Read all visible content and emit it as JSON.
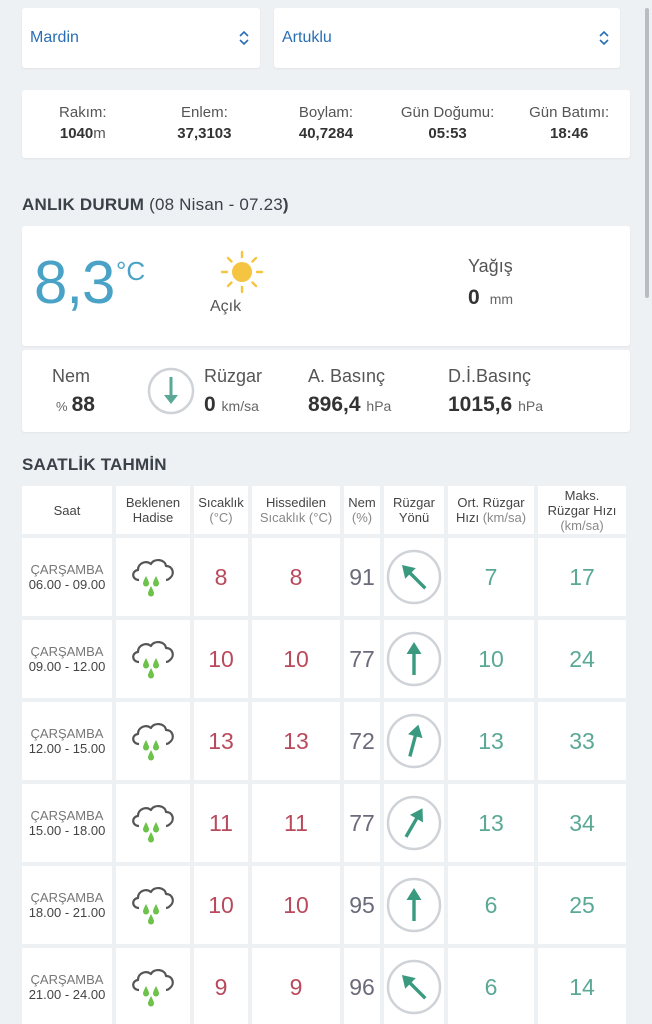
{
  "selectors": {
    "city": "Mardin",
    "district": "Artuklu"
  },
  "location_info": [
    {
      "label": "Rakım:",
      "value": "1040",
      "unit": "m"
    },
    {
      "label": "Enlem:",
      "value": "37,3103",
      "unit": ""
    },
    {
      "label": "Boylam:",
      "value": "40,7284",
      "unit": ""
    },
    {
      "label": "Gün Doğumu:",
      "value": "05:53",
      "unit": ""
    },
    {
      "label": "Gün Batımı:",
      "value": "18:46",
      "unit": ""
    }
  ],
  "current": {
    "title": "ANLIK DURUM",
    "date_open": "(",
    "date": "08 Nisan - 07.23",
    "date_close": ")",
    "temperature": "8,3",
    "temp_unit": "°C",
    "sky": "Açık",
    "sky_icon": "sun-icon",
    "precip_label": "Yağış",
    "precip_value": "0",
    "precip_unit": "mm",
    "humidity_label": "Nem",
    "humidity_prefix": "%",
    "humidity_value": "88",
    "wind_label": "Rüzgar",
    "wind_value": "0",
    "wind_unit": "km/sa",
    "pressure_label": "A. Basınç",
    "pressure_value": "896,4",
    "pressure_unit": "hPa",
    "sea_pressure_label": "D.İ.Basınç",
    "sea_pressure_value": "1015,6",
    "sea_pressure_unit": "hPa"
  },
  "hourly": {
    "title": "SAATLİK TAHMİN",
    "headers": {
      "hour": "Saat",
      "event_1": "Beklenen",
      "event_2": "Hadise",
      "temp_1": "Sıcaklık",
      "temp_2": "(°C)",
      "feels_1": "Hissedilen",
      "feels_2": "Sıcaklık (°C)",
      "hum_1": "Nem",
      "hum_2": "(%)",
      "dir_1": "Rüzgar",
      "dir_2": "Yönü",
      "avg_1": "Ort. Rüzgar",
      "avg_2": "Hızı",
      "avg_3": "(km/sa)",
      "max_1": "Maks.",
      "max_2": "Rüzgar Hızı",
      "max_3": "(km/sa)"
    },
    "rows": [
      {
        "day": "ÇARŞAMBA",
        "hours": "06.00 - 09.00",
        "icon": "rain-cloud-icon",
        "temp": "8",
        "feels": "8",
        "humidity": "91",
        "wind_dir_deg": 315,
        "avg_wind": "7",
        "max_wind": "17"
      },
      {
        "day": "ÇARŞAMBA",
        "hours": "09.00 - 12.00",
        "icon": "rain-cloud-icon",
        "temp": "10",
        "feels": "10",
        "humidity": "77",
        "wind_dir_deg": 0,
        "avg_wind": "10",
        "max_wind": "24"
      },
      {
        "day": "ÇARŞAMBA",
        "hours": "12.00 - 15.00",
        "icon": "rain-cloud-icon",
        "temp": "13",
        "feels": "13",
        "humidity": "72",
        "wind_dir_deg": 15,
        "avg_wind": "13",
        "max_wind": "33"
      },
      {
        "day": "ÇARŞAMBA",
        "hours": "15.00 - 18.00",
        "icon": "rain-cloud-icon",
        "temp": "11",
        "feels": "11",
        "humidity": "77",
        "wind_dir_deg": 30,
        "avg_wind": "13",
        "max_wind": "34"
      },
      {
        "day": "ÇARŞAMBA",
        "hours": "18.00 - 21.00",
        "icon": "rain-cloud-icon",
        "temp": "10",
        "feels": "10",
        "humidity": "95",
        "wind_dir_deg": 0,
        "avg_wind": "6",
        "max_wind": "25"
      },
      {
        "day": "ÇARŞAMBA",
        "hours": "21.00 - 24.00",
        "icon": "rain-cloud-icon",
        "temp": "9",
        "feels": "9",
        "humidity": "96",
        "wind_dir_deg": 315,
        "avg_wind": "6",
        "max_wind": "14"
      }
    ]
  },
  "colors": {
    "accent_blue": "#4aa3c7",
    "link_blue": "#2a6fb5",
    "temp_red": "#b84a5c",
    "wind_teal": "#5aa895",
    "rain_green": "#6cc24a",
    "sun_yellow": "#f5c542"
  }
}
